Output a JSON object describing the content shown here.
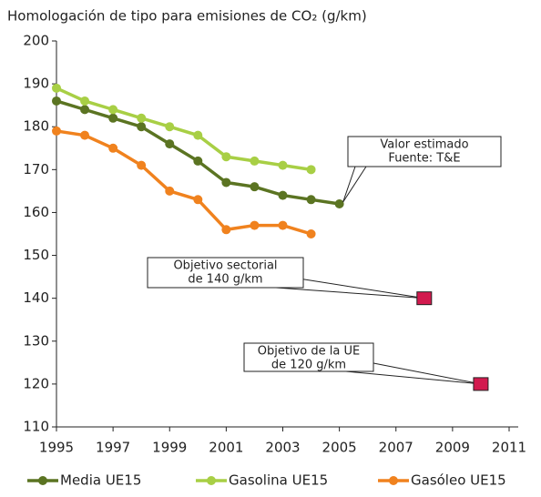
{
  "chart_data": {
    "type": "line",
    "title": "Homologación de tipo para emisiones de CO₂ (g/km)",
    "x": [
      1995,
      1996,
      1997,
      1998,
      1999,
      2000,
      2001,
      2002,
      2003,
      2004,
      2005
    ],
    "series": [
      {
        "name": "Media UE15",
        "color": "#5b7422",
        "values": [
          186,
          184,
          182,
          180,
          176,
          172,
          167,
          166,
          164,
          163,
          162
        ]
      },
      {
        "name": "Gasolina UE15",
        "color": "#a8cf45",
        "values": [
          189,
          186,
          184,
          182,
          180,
          178,
          173,
          172,
          171,
          170,
          null
        ]
      },
      {
        "name": "Gasóleo UE15",
        "color": "#f0821e",
        "values": [
          179,
          178,
          175,
          171,
          165,
          163,
          156,
          157,
          157,
          155,
          null
        ]
      }
    ],
    "targets": {
      "color": "#d21a4e",
      "points": [
        {
          "x": 2008,
          "value": 140,
          "label": [
            "Objetivo sectorial",
            "de 140 g/km"
          ]
        },
        {
          "x": 2010,
          "value": 120,
          "label": [
            "Objetivo de la UE",
            "de 120 g/km"
          ]
        }
      ]
    },
    "annotation": [
      "Valor estimado",
      "Fuente: T&E"
    ],
    "xlim": [
      1995,
      2011
    ],
    "xticks": [
      1995,
      1997,
      1999,
      2001,
      2003,
      2005,
      2007,
      2009,
      2011
    ],
    "ylim": [
      110,
      200
    ],
    "yticks": [
      110,
      120,
      130,
      140,
      150,
      160,
      170,
      180,
      190,
      200
    ],
    "legend": "bottom"
  }
}
